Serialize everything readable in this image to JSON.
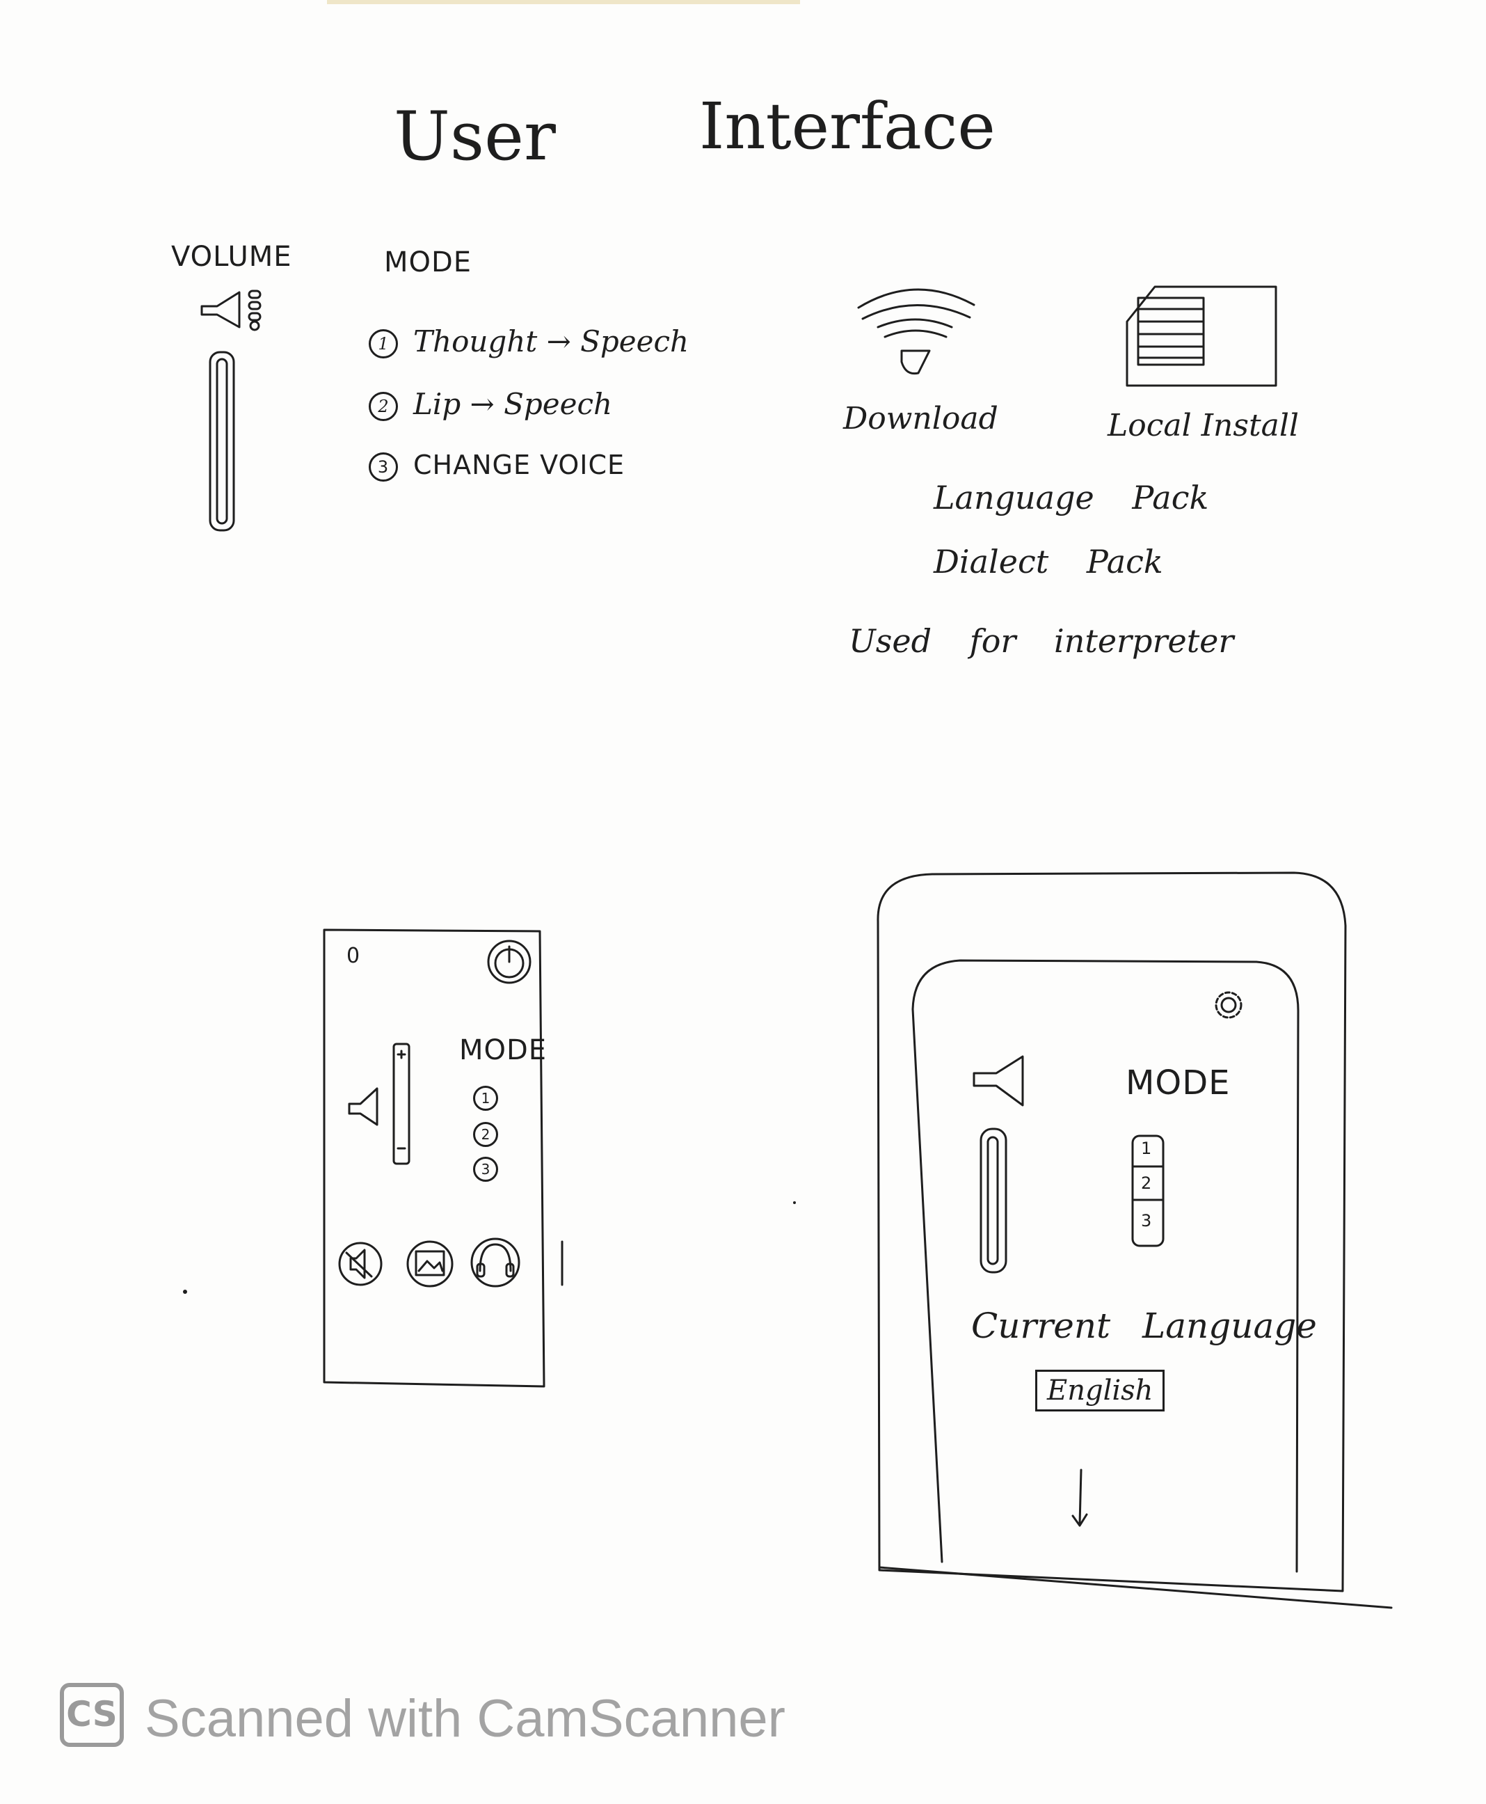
{
  "title": {
    "word1": "User",
    "word2": "Interface"
  },
  "sketch1": {
    "volume_label": "VOLUME",
    "mode_label": "MODE",
    "modes": [
      {
        "num": "1",
        "label": "Thought → Speech"
      },
      {
        "num": "2",
        "label": "Lip → Speech"
      },
      {
        "num": "3",
        "label": "CHANGE VOICE"
      }
    ]
  },
  "sketch2": {
    "download_label": "Download",
    "local_install_label": "Local Install",
    "language_pack": "Language Pack",
    "dialect_pack": "Dialect Pack",
    "note": "Used for interpreter"
  },
  "device1": {
    "mode_label": "MODE",
    "mode_options": [
      "1",
      "2",
      "3"
    ],
    "indicator": "0"
  },
  "device2": {
    "mode_label": "MODE",
    "mode_options": [
      "1",
      "2",
      "3"
    ],
    "current_language_label": "Current Language",
    "current_language_value": "English"
  },
  "footer": {
    "logo": "CS",
    "text": "Scanned with CamScanner"
  },
  "icons": [
    "speaker-icon",
    "wifi-icon",
    "sd-card-icon",
    "power-icon",
    "mute-icon",
    "image-icon",
    "headphones-icon",
    "gear-icon",
    "arrow-down-icon"
  ]
}
